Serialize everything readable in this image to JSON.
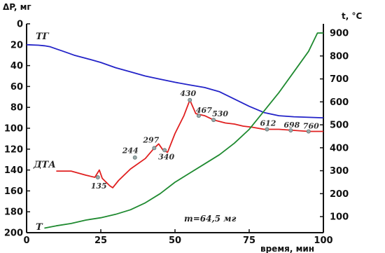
{
  "chart_data": {
    "type": "line",
    "title": "",
    "xlabel": "время, мин",
    "ylabel_left": "ΔP, мг",
    "ylabel_right": "t, °C",
    "xlim": [
      0,
      100
    ],
    "ylim_left": [
      200,
      0
    ],
    "ylim_right": [
      30,
      940
    ],
    "x_ticks": [
      0,
      25,
      50,
      75,
      100
    ],
    "y_left_ticks": [
      0,
      20,
      40,
      60,
      80,
      100,
      120,
      140,
      160,
      180,
      200
    ],
    "y_right_ticks": [
      100,
      200,
      300,
      400,
      500,
      600,
      700,
      800,
      900
    ],
    "grid": false,
    "annotation": "m=64,5 мг",
    "series": [
      {
        "name": "ТГ",
        "color": "#2323c8",
        "axis": "left",
        "x": [
          0,
          4,
          6,
          8,
          10,
          12,
          14,
          16,
          20,
          25,
          30,
          35,
          40,
          45,
          50,
          55,
          60,
          65,
          70,
          75,
          80,
          85,
          90,
          95,
          100
        ],
        "y": [
          20,
          20.5,
          21,
          22,
          24,
          26,
          28,
          30,
          33,
          37,
          42,
          46,
          50,
          53,
          56,
          58.5,
          61,
          65,
          72,
          79,
          85,
          88,
          89,
          89.5,
          90
        ]
      },
      {
        "name": "ДТА",
        "color": "#e02020",
        "axis": "left",
        "x": [
          10,
          15,
          20,
          23,
          24.5,
          25.5,
          28,
          29,
          31,
          35,
          40,
          43,
          44.5,
          46,
          47.5,
          50,
          53,
          55,
          57,
          60,
          63,
          67,
          70,
          73,
          76,
          80,
          85,
          90,
          95,
          100
        ],
        "y": [
          141,
          141,
          145,
          147,
          140,
          148,
          155,
          157,
          150,
          139,
          129,
          119,
          115,
          121,
          123,
          105,
          88,
          73,
          86,
          88,
          92,
          95,
          96,
          98,
          99,
          101,
          101,
          102,
          103,
          103
        ]
      },
      {
        "name": "Т",
        "color": "#1f8a30",
        "axis": "right",
        "x": [
          6,
          10,
          15,
          20,
          25,
          30,
          35,
          40,
          45,
          50,
          55,
          60,
          65,
          70,
          75,
          80,
          85,
          90,
          95,
          98,
          100
        ],
        "y": [
          50,
          60,
          70,
          85,
          95,
          110,
          130,
          160,
          200,
          250,
          290,
          330,
          370,
          420,
          480,
          560,
          640,
          730,
          820,
          900,
          900
        ]
      }
    ],
    "dta_points": [
      {
        "label": "135",
        "x": 24,
        "y": 147
      },
      {
        "label": "244",
        "x": 36.5,
        "y": 128
      },
      {
        "label": "297",
        "x": 43,
        "y": 119
      },
      {
        "label": "340",
        "x": 46.5,
        "y": 121
      },
      {
        "label": "430",
        "x": 55,
        "y": 73
      },
      {
        "label": "467",
        "x": 58,
        "y": 88
      },
      {
        "label": "530",
        "x": 63,
        "y": 92
      },
      {
        "label": "612",
        "x": 81,
        "y": 101
      },
      {
        "label": "698",
        "x": 89,
        "y": 102
      },
      {
        "label": "760",
        "x": 95,
        "y": 103
      }
    ],
    "curve_labels": [
      "ТГ",
      "ДТА",
      "Т"
    ]
  }
}
